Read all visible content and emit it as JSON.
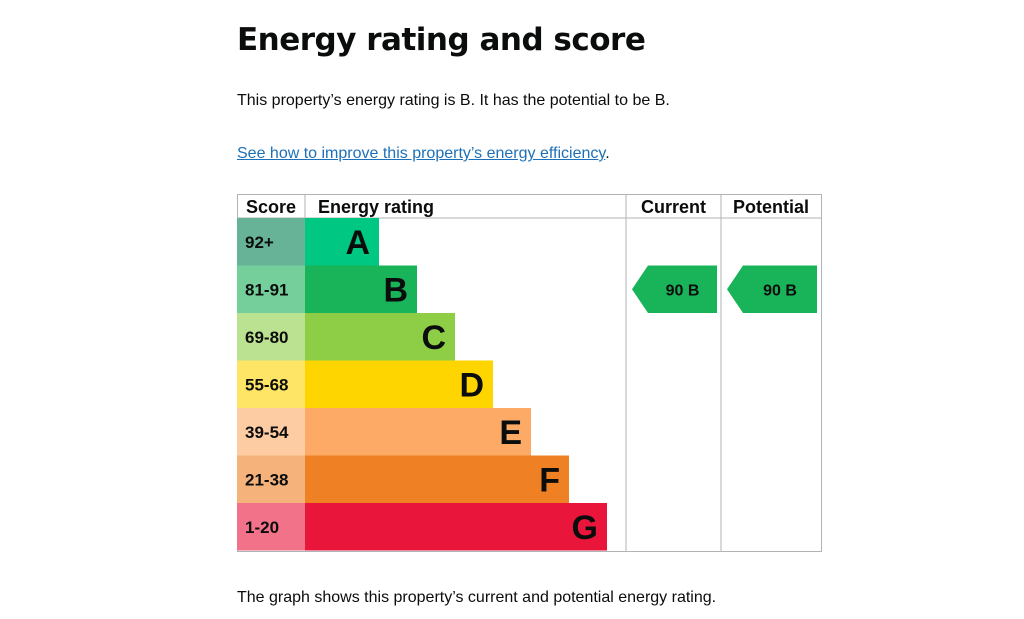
{
  "heading": "Energy rating and score",
  "summary": "This property’s energy rating is B. It has the potential to be B.",
  "improve_link": "See how to improve this property’s energy efficiency",
  "improve_suffix": ".",
  "footer": "The graph shows this property’s current and potential energy rating.",
  "chart_data": {
    "type": "bar",
    "title": "Energy rating",
    "headers": {
      "score": "Score",
      "rating": "Energy rating",
      "current": "Current",
      "potential": "Potential"
    },
    "bands": [
      {
        "letter": "A",
        "score": "92+",
        "color": "#008054",
        "score_bg": "#66b398",
        "bar": "#00c781"
      },
      {
        "letter": "B",
        "score": "81-91",
        "color": "#19b459",
        "score_bg": "#75cf9b",
        "bar": "#19b459"
      },
      {
        "letter": "C",
        "score": "69-80",
        "color": "#8dce46",
        "score_bg": "#bbe290",
        "bar": "#8dce46"
      },
      {
        "letter": "D",
        "score": "55-68",
        "color": "#ffd500",
        "score_bg": "#ffe566",
        "bar": "#ffd500"
      },
      {
        "letter": "E",
        "score": "39-54",
        "color": "#fcaa65",
        "score_bg": "#fdcca3",
        "bar": "#fcaa65"
      },
      {
        "letter": "F",
        "score": "21-38",
        "color": "#ef8023",
        "score_bg": "#f5b37b",
        "bar": "#ef8023"
      },
      {
        "letter": "G",
        "score": "1-20",
        "color": "#e9153b",
        "score_bg": "#f27389",
        "bar": "#e9153b"
      }
    ],
    "current": {
      "value": 90,
      "letter": "B",
      "label": "90  B",
      "color": "#19b459"
    },
    "potential": {
      "value": 90,
      "letter": "B",
      "label": "90  B",
      "color": "#19b459"
    }
  }
}
